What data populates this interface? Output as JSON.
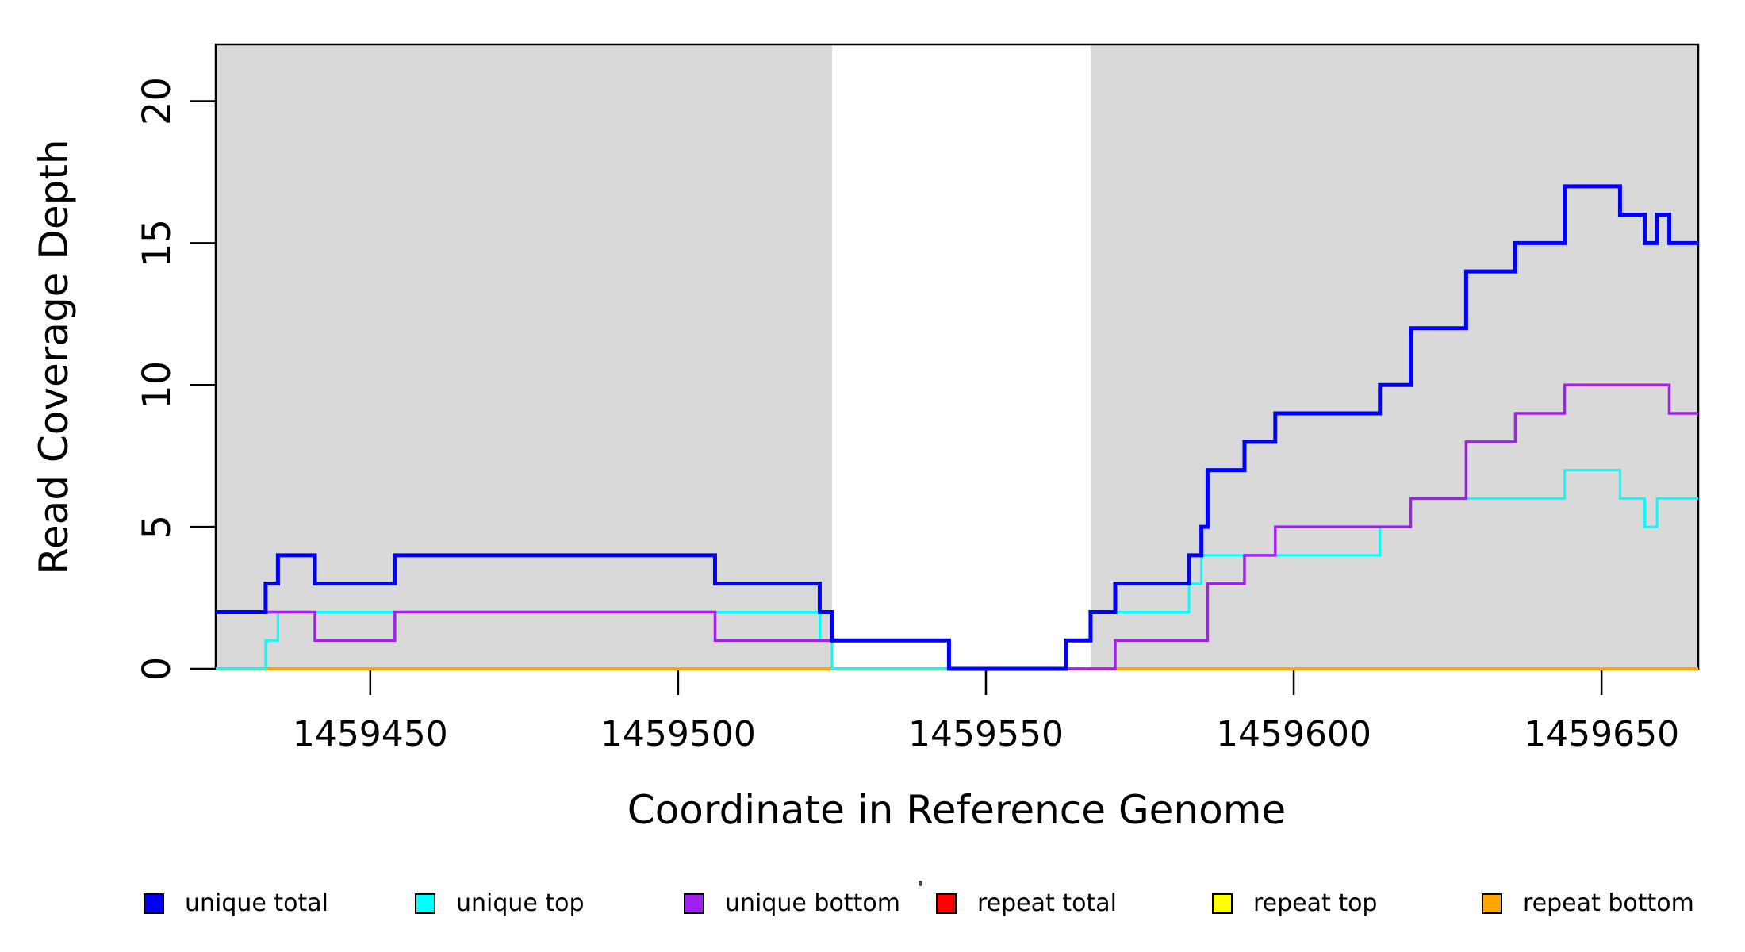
{
  "chart_data": {
    "type": "line",
    "subtype": "step-coverage",
    "title": "",
    "xlabel": "Coordinate in Reference Genome",
    "ylabel": "Read Coverage Depth",
    "xlim": [
      1459424.9,
      1459665.7
    ],
    "ylim": [
      0,
      22
    ],
    "xticks": [
      1459450,
      1459500,
      1459550,
      1459600,
      1459650
    ],
    "yticks": [
      0,
      5,
      10,
      15,
      20
    ],
    "grid": false,
    "legend_position": "bottom",
    "background_color": "#ffffff",
    "shade_color": "#d9d9d9",
    "shaded_regions": [
      {
        "from": 1459424.9,
        "to": 1459525
      },
      {
        "from": 1459567,
        "to": 1459665.7
      }
    ],
    "series": [
      {
        "name": "repeat total",
        "color": "#FF0000",
        "width": 3,
        "points": [
          [
            1459424.9,
            0
          ]
        ]
      },
      {
        "name": "repeat top",
        "color": "#FFFF00",
        "width": 3,
        "points": [
          [
            1459424.9,
            0
          ]
        ]
      },
      {
        "name": "repeat bottom",
        "color": "#FFA500",
        "width": 4,
        "points": [
          [
            1459424.9,
            0
          ]
        ]
      },
      {
        "name": "unique top",
        "color": "#00FFFF",
        "width": 3,
        "points": [
          [
            1459424.9,
            0
          ],
          [
            1459433,
            1
          ],
          [
            1459435,
            2
          ],
          [
            1459523,
            1
          ],
          [
            1459525,
            0
          ],
          [
            1459563,
            1
          ],
          [
            1459567,
            2
          ],
          [
            1459583,
            3
          ],
          [
            1459585,
            4
          ],
          [
            1459614,
            5
          ],
          [
            1459619,
            6
          ],
          [
            1459644,
            7
          ],
          [
            1459653,
            6
          ],
          [
            1459657,
            5
          ],
          [
            1459659,
            6
          ]
        ]
      },
      {
        "name": "unique bottom",
        "color": "#A020F0",
        "width": 3.5,
        "points": [
          [
            1459424.9,
            2
          ],
          [
            1459441,
            1
          ],
          [
            1459454,
            2
          ],
          [
            1459506,
            1
          ],
          [
            1459544,
            0
          ],
          [
            1459571,
            1
          ],
          [
            1459586,
            3
          ],
          [
            1459592,
            4
          ],
          [
            1459597,
            5
          ],
          [
            1459619,
            6
          ],
          [
            1459628,
            8
          ],
          [
            1459636,
            9
          ],
          [
            1459644,
            10
          ],
          [
            1459661,
            9
          ]
        ]
      },
      {
        "name": "unique total",
        "color": "#0000FF",
        "width": 5,
        "points": [
          [
            1459424.9,
            2
          ],
          [
            1459433,
            3
          ],
          [
            1459435,
            4
          ],
          [
            1459441,
            3
          ],
          [
            1459454,
            4
          ],
          [
            1459506,
            3
          ],
          [
            1459523,
            2
          ],
          [
            1459525,
            1
          ],
          [
            1459544,
            0
          ],
          [
            1459563,
            1
          ],
          [
            1459567,
            2
          ],
          [
            1459571,
            3
          ],
          [
            1459583,
            4
          ],
          [
            1459585,
            5
          ],
          [
            1459586,
            7
          ],
          [
            1459592,
            8
          ],
          [
            1459597,
            9
          ],
          [
            1459614,
            10
          ],
          [
            1459619,
            12
          ],
          [
            1459628,
            14
          ],
          [
            1459636,
            15
          ],
          [
            1459644,
            17
          ],
          [
            1459653,
            16
          ],
          [
            1459657,
            15
          ],
          [
            1459659,
            16
          ],
          [
            1459661,
            15
          ]
        ]
      }
    ],
    "artifact_dot": {
      "x": 1158,
      "y": 1110
    }
  },
  "legend": {
    "entries": [
      {
        "label": "unique total",
        "color": "#0000FF"
      },
      {
        "label": "unique top",
        "color": "#00FFFF"
      },
      {
        "label": "unique bottom",
        "color": "#A020F0"
      },
      {
        "label": "repeat total",
        "color": "#FF0000"
      },
      {
        "label": "repeat top",
        "color": "#FFFF00"
      },
      {
        "label": "repeat bottom",
        "color": "#FFA500"
      }
    ]
  }
}
